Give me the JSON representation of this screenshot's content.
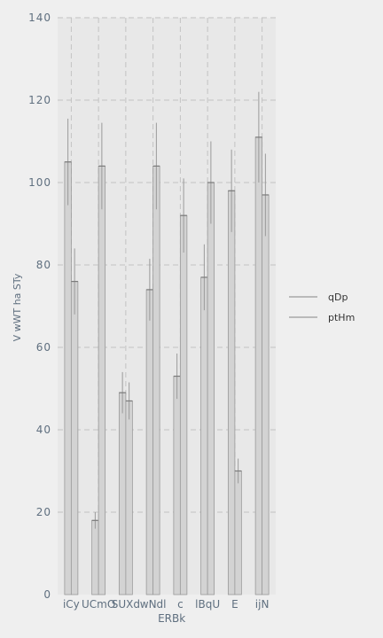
{
  "chart_data": {
    "type": "bar",
    "title": "",
    "xlabel": "",
    "ylabel": "V wWT ha STy",
    "ylim": [
      0,
      140
    ],
    "yticks": [
      0,
      20,
      40,
      60,
      80,
      100,
      120,
      140
    ],
    "grid": true,
    "legend_position": "right",
    "categories": [
      "iCy",
      "UCmO",
      "SUXd",
      "wNdl",
      "c",
      "lBqU",
      "E",
      "ijN"
    ],
    "category_extra_label": {
      "index": 3,
      "text": "ERBk"
    },
    "series": [
      {
        "name": "qDp",
        "values": [
          105,
          18,
          49,
          74,
          53,
          77,
          98,
          111
        ],
        "errors": [
          10.5,
          2,
          5,
          7.5,
          5.5,
          8,
          10,
          11
        ]
      },
      {
        "name": "ptHm",
        "values": [
          76,
          104,
          47,
          104,
          92,
          100,
          30,
          97
        ],
        "errors": [
          8,
          10.5,
          4.5,
          10.5,
          9,
          10,
          3,
          10
        ]
      }
    ],
    "colors": {
      "bar": "#d3d3d3",
      "bar_edge": "#9a9a9a",
      "plot_bg": "#e8e8e8",
      "grid": "#c2c2c2",
      "error": "#9a9a9a"
    }
  }
}
